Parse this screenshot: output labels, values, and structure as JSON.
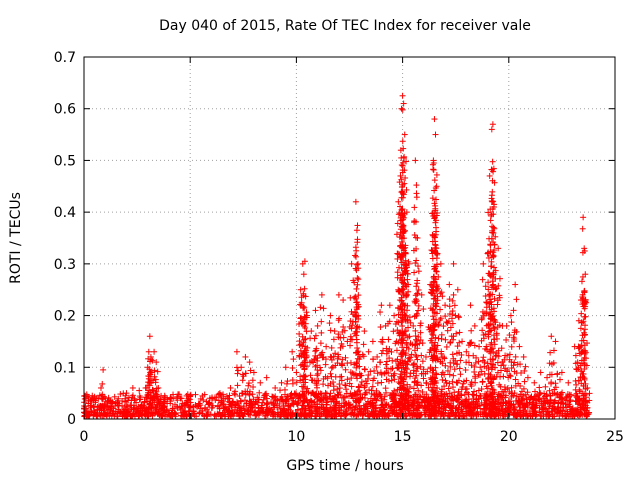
{
  "chart_data": {
    "type": "scatter",
    "title": "Day 040 of 2015, Rate Of TEC Index for receiver vale",
    "xlabel": "GPS time / hours",
    "ylabel": "ROTI / TECUs",
    "xlim": [
      0,
      25
    ],
    "ylim": [
      0,
      0.7
    ],
    "xticks": [
      0,
      5,
      10,
      15,
      20,
      25
    ],
    "yticks": [
      0,
      0.1,
      0.2,
      0.3,
      0.4,
      0.5,
      0.6,
      0.7
    ],
    "xtick_labels": [
      "0",
      "5",
      "10",
      "15",
      "20",
      "25"
    ],
    "ytick_labels": [
      "0",
      "0.1",
      "0.2",
      "0.3",
      "0.4",
      "0.5",
      "0.6",
      "0.7"
    ],
    "grid": true,
    "marker": "+",
    "series": [
      {
        "name": "ROTI",
        "color": "#ff0000",
        "x": [
          0.0,
          0.05,
          0.1,
          0.2,
          0.3,
          0.5,
          0.8,
          0.9,
          1.0,
          1.3,
          1.6,
          2.0,
          2.3,
          2.6,
          2.9,
          3.0,
          3.05,
          3.1,
          3.15,
          3.2,
          3.3,
          3.4,
          3.5,
          3.8,
          4.2,
          4.6,
          5.0,
          5.4,
          5.9,
          6.4,
          6.9,
          7.2,
          7.4,
          7.6,
          7.8,
          8.0,
          8.3,
          8.6,
          9.0,
          9.3,
          9.5,
          9.8,
          10.0,
          10.2,
          10.3,
          10.35,
          10.4,
          10.5,
          10.7,
          10.9,
          11.0,
          11.2,
          11.4,
          11.6,
          11.8,
          12.0,
          12.2,
          12.4,
          12.6,
          12.8,
          12.85,
          12.9,
          13.0,
          13.2,
          13.4,
          13.6,
          13.8,
          14.0,
          14.2,
          14.4,
          14.6,
          14.8,
          14.9,
          14.95,
          15.0,
          15.05,
          15.1,
          15.2,
          15.3,
          15.5,
          15.6,
          15.7,
          15.9,
          16.1,
          16.3,
          16.4,
          16.45,
          16.5,
          16.55,
          16.6,
          16.8,
          17.0,
          17.2,
          17.4,
          17.6,
          17.8,
          18.0,
          18.2,
          18.4,
          18.6,
          18.8,
          19.0,
          19.1,
          19.2,
          19.25,
          19.3,
          19.5,
          19.7,
          19.9,
          20.1,
          20.3,
          20.5,
          20.7,
          20.9,
          21.2,
          21.5,
          21.8,
          22.0,
          22.2,
          22.5,
          22.8,
          23.1,
          23.3,
          23.4,
          23.5,
          23.55,
          23.6,
          23.7
        ],
        "y": [
          0.013,
          0.045,
          0.02,
          0.03,
          0.035,
          0.04,
          0.06,
          0.095,
          0.04,
          0.03,
          0.035,
          0.05,
          0.06,
          0.055,
          0.06,
          0.1,
          0.13,
          0.16,
          0.12,
          0.09,
          0.13,
          0.11,
          0.06,
          0.045,
          0.04,
          0.04,
          0.045,
          0.03,
          0.03,
          0.05,
          0.06,
          0.13,
          0.1,
          0.12,
          0.11,
          0.09,
          0.07,
          0.08,
          0.06,
          0.07,
          0.1,
          0.13,
          0.09,
          0.25,
          0.3,
          0.28,
          0.305,
          0.2,
          0.17,
          0.21,
          0.18,
          0.24,
          0.14,
          0.2,
          0.17,
          0.24,
          0.23,
          0.15,
          0.3,
          0.42,
          0.365,
          0.3,
          0.12,
          0.17,
          0.13,
          0.15,
          0.12,
          0.22,
          0.18,
          0.22,
          0.2,
          0.42,
          0.47,
          0.6,
          0.625,
          0.61,
          0.55,
          0.4,
          0.3,
          0.18,
          0.5,
          0.35,
          0.24,
          0.12,
          0.26,
          0.32,
          0.5,
          0.58,
          0.55,
          0.45,
          0.3,
          0.22,
          0.26,
          0.3,
          0.25,
          0.15,
          0.13,
          0.22,
          0.18,
          0.14,
          0.3,
          0.32,
          0.47,
          0.56,
          0.57,
          0.41,
          0.33,
          0.18,
          0.18,
          0.2,
          0.26,
          0.14,
          0.12,
          0.08,
          0.07,
          0.09,
          0.08,
          0.16,
          0.15,
          0.09,
          0.07,
          0.14,
          0.19,
          0.23,
          0.39,
          0.33,
          0.28,
          0.06
        ]
      }
    ],
    "baseline_band": {
      "ymin": 0.005,
      "ymax": 0.05,
      "x_range": [
        0,
        23.8
      ]
    }
  }
}
